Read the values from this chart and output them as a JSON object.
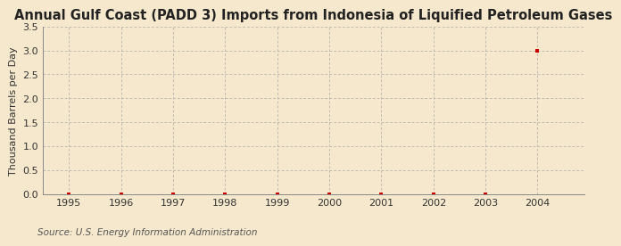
{
  "title": "Annual Gulf Coast (PADD 3) Imports from Indonesia of Liquified Petroleum Gases",
  "ylabel": "Thousand Barrels per Day",
  "source": "Source: U.S. Energy Information Administration",
  "background_color": "#f5e8cc",
  "plot_bg_color": "#f5e8cc",
  "years": [
    1995,
    1996,
    1997,
    1998,
    1999,
    2000,
    2001,
    2002,
    2003,
    2004
  ],
  "values": [
    0.0,
    0.0,
    0.0,
    0.0,
    0.0,
    0.0,
    0.0,
    0.0,
    0.0,
    3.0
  ],
  "marker_color": "#cc0000",
  "marker_style": "s",
  "marker_size": 3,
  "xlim": [
    1994.5,
    2004.9
  ],
  "ylim": [
    0.0,
    3.5
  ],
  "yticks": [
    0.0,
    0.5,
    1.0,
    1.5,
    2.0,
    2.5,
    3.0,
    3.5
  ],
  "xticks": [
    1995,
    1996,
    1997,
    1998,
    1999,
    2000,
    2001,
    2002,
    2003,
    2004
  ],
  "title_fontsize": 10.5,
  "axis_label_fontsize": 8,
  "tick_fontsize": 8,
  "source_fontsize": 7.5,
  "grid_color": "#aaaaaa",
  "grid_linestyle": "--",
  "grid_linewidth": 0.5
}
